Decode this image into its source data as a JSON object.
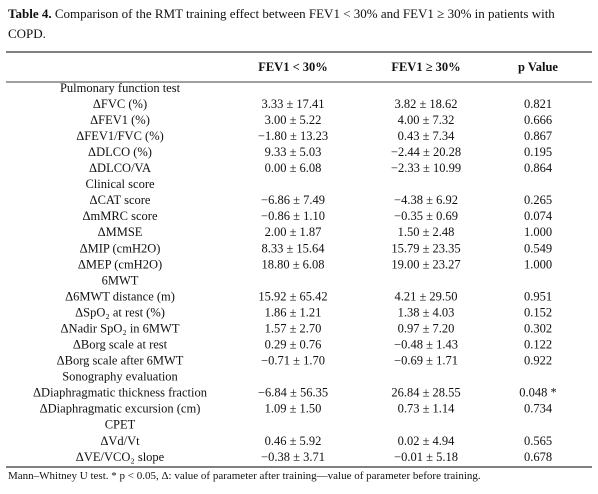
{
  "caption": {
    "label": "Table 4.",
    "text": "Comparison of the RMT training effect between FEV1 < 30% and FEV1 ≥ 30% in patients with COPD."
  },
  "table": {
    "headers": [
      "",
      "FEV1 < 30%",
      "FEV1 ≥ 30%",
      "p Value"
    ],
    "rows": [
      {
        "section": "Pulmonary function test"
      },
      {
        "label": "ΔFVC (%)",
        "cells": [
          "3.33 ± 17.41",
          "3.82 ± 18.62",
          "0.821"
        ]
      },
      {
        "label": "ΔFEV1 (%)",
        "cells": [
          "3.00 ± 5.22",
          "4.00 ± 7.32",
          "0.666"
        ]
      },
      {
        "label": "ΔFEV1/FVC (%)",
        "cells": [
          "−1.80 ± 13.23",
          "0.43 ± 7.34",
          "0.867"
        ]
      },
      {
        "label": "ΔDLCO (%)",
        "cells": [
          "9.33 ± 5.03",
          "−2.44 ± 20.28",
          "0.195"
        ]
      },
      {
        "label": "ΔDLCO/VA",
        "cells": [
          "0.00 ± 6.08",
          "−2.33 ± 10.99",
          "0.864"
        ]
      },
      {
        "section": "Clinical score"
      },
      {
        "label": "ΔCAT score",
        "cells": [
          "−6.86 ± 7.49",
          "−4.38 ± 6.92",
          "0.265"
        ]
      },
      {
        "label": "ΔmMRC score",
        "cells": [
          "−0.86 ± 1.10",
          "−0.35 ± 0.69",
          "0.074"
        ]
      },
      {
        "label": "ΔMMSE",
        "cells": [
          "2.00 ± 1.87",
          "1.50 ± 2.48",
          "1.000"
        ]
      },
      {
        "label": "ΔMIP (cmH2O)",
        "cells": [
          "8.33 ± 15.64",
          "15.79 ± 23.35",
          "0.549"
        ]
      },
      {
        "label": "ΔMEP (cmH2O)",
        "cells": [
          "18.80 ± 6.08",
          "19.00 ± 23.27",
          "1.000"
        ]
      },
      {
        "section": "6MWT"
      },
      {
        "label": "Δ6MWT distance (m)",
        "cells": [
          "15.92 ± 65.42",
          "4.21 ± 29.50",
          "0.951"
        ]
      },
      {
        "label": "ΔSpO₂ at rest (%)",
        "cells": [
          "1.86 ± 1.21",
          "1.38 ± 4.03",
          "0.152"
        ]
      },
      {
        "label": "ΔNadir SpO₂ in 6MWT",
        "cells": [
          "1.57 ± 2.70",
          "0.97 ± 7.20",
          "0.302"
        ]
      },
      {
        "label": "ΔBorg scale at rest",
        "cells": [
          "0.29 ± 0.76",
          "−0.48 ± 1.43",
          "0.122"
        ]
      },
      {
        "label": "ΔBorg scale after 6MWT",
        "cells": [
          "−0.71 ± 1.70",
          "−0.69 ± 1.71",
          "0.922"
        ]
      },
      {
        "section": "Sonography evaluation"
      },
      {
        "label": "ΔDiaphragmatic thickness fraction",
        "cells": [
          "−6.84 ± 56.35",
          "26.84 ± 28.55",
          "0.048 *"
        ]
      },
      {
        "label": "ΔDiaphragmatic excursion (cm)",
        "cells": [
          "1.09 ± 1.50",
          "0.73 ± 1.14",
          "0.734"
        ]
      },
      {
        "section": "CPET"
      },
      {
        "label": "ΔVd/Vt",
        "cells": [
          "0.46 ± 5.92",
          "0.02 ± 4.94",
          "0.565"
        ]
      },
      {
        "label": "ΔVE/VCO₂ slope",
        "cells": [
          "−0.38 ± 3.71",
          "−0.01 ± 5.18",
          "0.678"
        ]
      }
    ]
  },
  "footnote": "Mann–Whitney U test. * p < 0.05, Δ: value of parameter after training—value of parameter before training."
}
